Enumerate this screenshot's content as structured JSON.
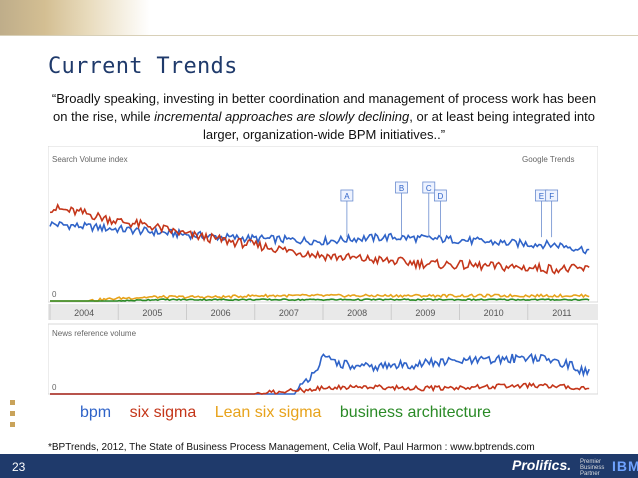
{
  "slide": {
    "title": "Current Trends",
    "quote_parts": [
      {
        "t": "“Broadly speaking, investing in better coordination and management of process work has been on the rise, while ",
        "i": false
      },
      {
        "t": "incremental  approaches  are  slowly declining",
        "i": true
      },
      {
        "t": ",  or  at  least being  integrated  into  larger, organization-wide BPM initiatives..”",
        "i": false
      }
    ],
    "legend": [
      {
        "label": "bpm",
        "color": "#2f63c8"
      },
      {
        "label": "six sigma",
        "color": "#c4361a"
      },
      {
        "label": "Lean six sigma",
        "color": "#e7a21a"
      },
      {
        "label": "business architecture",
        "color": "#2a8a26"
      }
    ],
    "source": "*BPTrends, 2012, The State of Business Process Management, Celia Wolf, Paul Harmon :  www.bptrends.com",
    "page_number": "23",
    "footer_logo": "Prolifics.",
    "footer_partner": "Premier Business Partner",
    "footer_ibm": "IBM"
  },
  "chart_data": {
    "type": "line",
    "title": "",
    "top_panel_label": "Search Volume index",
    "brand_label": "Google Trends",
    "bottom_panel_label": "News reference volume",
    "x_ticks": [
      "2004",
      "2005",
      "2006",
      "2007",
      "2008",
      "2009",
      "2010",
      "2011"
    ],
    "y_zero_label": "0",
    "ylim": [
      0,
      100
    ],
    "x_range": [
      2004.0,
      2012.0
    ],
    "annotations": [
      "A",
      "B",
      "C",
      "D",
      "E",
      "F"
    ],
    "annotation_x": [
      2008.35,
      2009.15,
      2009.55,
      2009.72,
      2011.2,
      2011.35
    ],
    "series": [
      {
        "name": "bpm",
        "color": "#2f63c8",
        "x": [
          2004.0,
          2004.5,
          2005.0,
          2005.5,
          2006.0,
          2006.5,
          2007.0,
          2007.5,
          2008.0,
          2008.5,
          2009.0,
          2009.5,
          2010.0,
          2010.5,
          2011.0,
          2011.5,
          2011.9
        ],
        "y": [
          58,
          56,
          54,
          52,
          50,
          48,
          47,
          46,
          45,
          47,
          48,
          47,
          46,
          44,
          43,
          42,
          38
        ]
      },
      {
        "name": "six sigma",
        "color": "#c4361a",
        "x": [
          2004.0,
          2004.5,
          2005.0,
          2005.5,
          2006.0,
          2006.5,
          2007.0,
          2007.5,
          2008.0,
          2008.5,
          2009.0,
          2009.5,
          2010.0,
          2010.5,
          2011.0,
          2011.5,
          2011.9
        ],
        "y": [
          70,
          66,
          60,
          56,
          50,
          46,
          42,
          38,
          34,
          32,
          30,
          28,
          27,
          26,
          25,
          24,
          24
        ]
      },
      {
        "name": "Lean six sigma",
        "color": "#e7a21a",
        "x": [
          2004.0,
          2004.5,
          2005.0,
          2005.5,
          2006.0,
          2006.5,
          2007.0,
          2007.5,
          2008.0,
          2008.5,
          2009.0,
          2009.5,
          2010.0,
          2010.5,
          2011.0,
          2011.5,
          2011.9
        ],
        "y": [
          0,
          0,
          2,
          3,
          3,
          3,
          4,
          4,
          4,
          4,
          4,
          4,
          4,
          4,
          4,
          4,
          4
        ]
      },
      {
        "name": "business architecture",
        "color": "#2a8a26",
        "x": [
          2004.0,
          2004.5,
          2005.0,
          2005.5,
          2006.0,
          2006.5,
          2007.0,
          2007.5,
          2008.0,
          2008.5,
          2009.0,
          2009.5,
          2010.0,
          2010.5,
          2011.0,
          2011.5,
          2011.9
        ],
        "y": [
          0,
          0,
          0,
          1,
          1,
          1,
          1,
          1,
          1,
          1,
          1,
          1,
          1,
          1,
          1,
          1,
          1
        ]
      }
    ],
    "news_series": [
      {
        "name": "bpm",
        "color": "#2f63c8",
        "x": [
          2004.0,
          2005.0,
          2006.0,
          2007.0,
          2007.6,
          2008.0,
          2008.5,
          2009.0,
          2009.5,
          2010.0,
          2010.5,
          2011.0,
          2011.5,
          2011.9
        ],
        "y": [
          0,
          0,
          0,
          0,
          0,
          38,
          28,
          30,
          33,
          35,
          36,
          40,
          34,
          22
        ]
      },
      {
        "name": "six sigma",
        "color": "#c4361a",
        "x": [
          2004.0,
          2005.0,
          2006.0,
          2007.0,
          2008.0,
          2008.5,
          2009.0,
          2009.5,
          2010.0,
          2010.5,
          2011.0,
          2011.5,
          2011.9
        ],
        "y": [
          0,
          0,
          0,
          0,
          6,
          8,
          7,
          6,
          7,
          8,
          9,
          8,
          6
        ]
      }
    ]
  }
}
